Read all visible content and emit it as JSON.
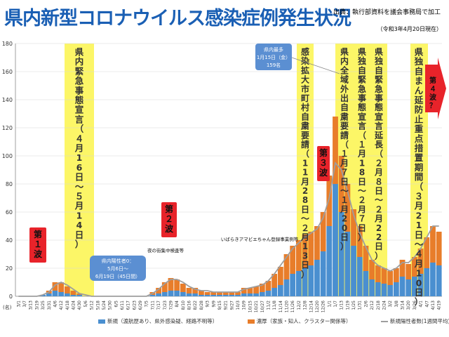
{
  "title": "県内新型コロナウイルス感染症例発生状況",
  "source": "出典：執行部資料を議会事務局で加工",
  "date_note": "（令和3年4月20日現在）",
  "unit_label": "(名)",
  "colors": {
    "new": "#4a8fd0",
    "close": "#e87d2a",
    "avg": "#9e9e9e",
    "band": "#fbf44c",
    "wave": "#e8232a",
    "callout": "#5b8fd2"
  },
  "legend": {
    "new": "新規（渡航歴あり、県外感染疑、経路不明等）",
    "close": "濃厚（家族・知人、クラスター関係等）",
    "avg": "新規陽性者数(1週間平均)"
  },
  "bands": [
    {
      "label": "県内緊急事態宣言（４月16日～５月14日）"
    },
    {
      "label": "感染拡大市町村自粛要請（11月28日～２月13日）"
    },
    {
      "label": "県内全域外出自粛要請（１月７日～１月20日）"
    },
    {
      "label": "県独自緊急事態宣言（１月18日～２月７日）"
    },
    {
      "label": "県独自緊急事態宣言延長（２月８日～２月22日）"
    },
    {
      "label": "県独自まん延防止重点措置期間（３月21日～４月10日）"
    }
  ],
  "waves": [
    {
      "label": "第１波"
    },
    {
      "label": "第２波"
    },
    {
      "label": "第３波"
    },
    {
      "label": "第４波？"
    }
  ],
  "callouts": {
    "max": [
      "県内最多",
      "1月15日（金）",
      "159名"
    ],
    "zero": [
      "県内陽性者0：",
      "5月6日～",
      "6月19日（45日間）"
    ]
  },
  "annotations": {
    "nightlife": "夜の街集中検査等",
    "amabie": "いばらきアマビエちゃん登録事業例等"
  },
  "chart_data": {
    "type": "bar",
    "stacked": true,
    "ylim": [
      0,
      180
    ],
    "y_ticks": [
      0,
      20,
      40,
      60,
      80,
      100,
      120,
      140,
      160,
      180
    ],
    "x_tick_labels": [
      "3/1",
      "3/7",
      "3/13",
      "3/19",
      "3/25",
      "3/31",
      "4/6",
      "4/12",
      "4/18",
      "4/24",
      "4/30",
      "5/6",
      "5/12",
      "5/18",
      "5/24",
      "5/30",
      "6/5",
      "6/11",
      "6/17",
      "6/23",
      "6/29",
      "7/5",
      "7/11",
      "7/17",
      "7/23",
      "7/29",
      "8/4",
      "8/10",
      "8/16",
      "8/22",
      "8/28",
      "9/3",
      "9/9",
      "9/15",
      "9/21",
      "9/27",
      "10/3",
      "10/9",
      "10/15",
      "10/21",
      "10/27",
      "11/2",
      "11/8",
      "11/14",
      "11/20",
      "11/26",
      "12/2",
      "12/8",
      "12/14",
      "12/20",
      "12/26",
      "1/1",
      "1/7",
      "1/13",
      "1/19",
      "1/25",
      "1/31",
      "2/6",
      "2/12",
      "2/18",
      "2/24",
      "3/2",
      "3/8",
      "3/14",
      "3/20",
      "3/26",
      "4/1",
      "4/7",
      "4/13",
      "4/19"
    ],
    "series": [
      {
        "name": "新規（渡航歴あり、県外感染疑、経路不明等）",
        "key": "new",
        "values": [
          0,
          0,
          0,
          0,
          1,
          2,
          4,
          3,
          2,
          1,
          1,
          0,
          0,
          0,
          0,
          0,
          0,
          0,
          0,
          0,
          0,
          0,
          1,
          2,
          3,
          4,
          4,
          3,
          2,
          2,
          1,
          1,
          1,
          1,
          1,
          1,
          1,
          2,
          2,
          2,
          3,
          4,
          6,
          8,
          12,
          16,
          18,
          20,
          22,
          26,
          32,
          50,
          80,
          60,
          46,
          36,
          28,
          18,
          12,
          10,
          9,
          8,
          10,
          14,
          12,
          14,
          16,
          20,
          24,
          22
        ]
      },
      {
        "name": "濃厚（家族・知人、クラスター関係等）",
        "key": "close",
        "values": [
          0,
          0,
          0,
          0,
          0,
          2,
          6,
          7,
          5,
          3,
          1,
          0,
          0,
          0,
          0,
          0,
          0,
          0,
          0,
          0,
          0,
          0,
          2,
          4,
          7,
          9,
          8,
          6,
          4,
          4,
          3,
          2,
          2,
          2,
          2,
          2,
          2,
          4,
          4,
          5,
          6,
          7,
          10,
          13,
          18,
          20,
          22,
          24,
          24,
          24,
          28,
          36,
          48,
          40,
          34,
          26,
          22,
          18,
          14,
          12,
          11,
          10,
          10,
          12,
          11,
          14,
          18,
          22,
          26,
          24
        ]
      }
    ],
    "avg_values": [
      0,
      0,
      0,
      0,
      1,
      3,
      8,
      10,
      8,
      5,
      2,
      1,
      0,
      0,
      0,
      0,
      0,
      0,
      0,
      0,
      0,
      0,
      2,
      5,
      9,
      12,
      12,
      10,
      7,
      5,
      4,
      4,
      3,
      3,
      3,
      3,
      3,
      5,
      6,
      7,
      8,
      11,
      16,
      22,
      28,
      34,
      38,
      42,
      45,
      48,
      56,
      70,
      95,
      90,
      75,
      58,
      45,
      35,
      26,
      22,
      20,
      18,
      20,
      24,
      24,
      28,
      34,
      42,
      50,
      50
    ]
  }
}
